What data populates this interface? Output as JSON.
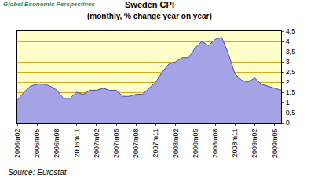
{
  "chart_data": {
    "type": "area",
    "title": "Sweden CPI",
    "subtitle": "(monthly, % change year on year)",
    "annotations": [
      "Global Economic Perspectives",
      "Source: Eurostat"
    ],
    "categories": [
      "2006m02",
      null,
      null,
      "2006m05",
      null,
      null,
      "2006m08",
      null,
      null,
      "2006m11",
      null,
      null,
      "2007m02",
      null,
      null,
      "2007m05",
      null,
      null,
      "2007m08",
      null,
      null,
      "2007m11",
      null,
      null,
      "2008m02",
      null,
      null,
      "2008m05",
      null,
      null,
      "2008m08",
      null,
      null,
      "2008m11",
      null,
      null,
      "2009m02",
      null,
      null,
      "2009m05",
      null
    ],
    "values": [
      1.1,
      1.5,
      1.8,
      1.9,
      1.9,
      1.8,
      1.6,
      1.2,
      1.2,
      1.5,
      1.4,
      1.6,
      1.6,
      1.7,
      1.6,
      1.6,
      1.3,
      1.3,
      1.4,
      1.4,
      1.7,
      2.0,
      2.5,
      2.9,
      3.0,
      3.2,
      3.2,
      3.7,
      4.0,
      3.8,
      4.1,
      4.2,
      3.4,
      2.4,
      2.1,
      2.0,
      2.2,
      1.9,
      1.8,
      1.7,
      1.6
    ],
    "color": "#a3a3e6",
    "ylim": [
      0,
      4.5
    ],
    "yticks": [
      0,
      {
        "value": 0.5,
        "label": "0,5"
      },
      1,
      {
        "value": 1.5,
        "label": "1,5"
      },
      2,
      {
        "value": 2.5,
        "label": "2,5"
      },
      3,
      {
        "value": 3.5,
        "label": "3,5"
      },
      4,
      {
        "value": 4.5,
        "label": "4,5"
      }
    ],
    "grid": true
  }
}
